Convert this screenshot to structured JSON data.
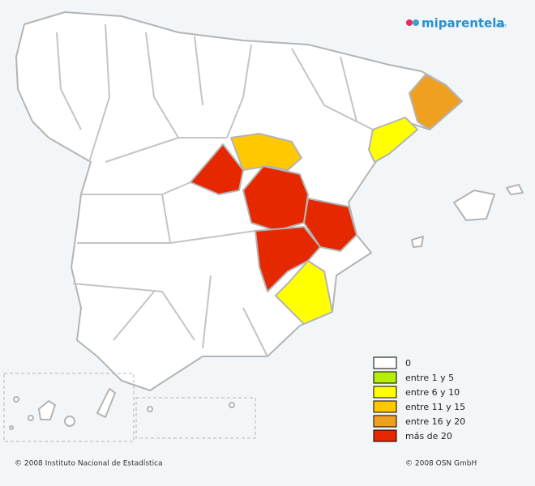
{
  "logo": {
    "text": "miparentela",
    "suffix": ".com"
  },
  "legend": [
    {
      "label": "0",
      "color": "#ffffff"
    },
    {
      "label": "entre 1 y 5",
      "color": "#b4f000"
    },
    {
      "label": "entre 6 y 10",
      "color": "#ffff00"
    },
    {
      "label": "entre 11 y 15",
      "color": "#ffc800"
    },
    {
      "label": "entre 16 y 20",
      "color": "#f0a020"
    },
    {
      "label": "más de 20",
      "color": "#e62800"
    }
  ],
  "footer": {
    "left": "© 2008 Instituto Nacional de Estadística",
    "right": "© 2008 OSN GmbH"
  }
}
